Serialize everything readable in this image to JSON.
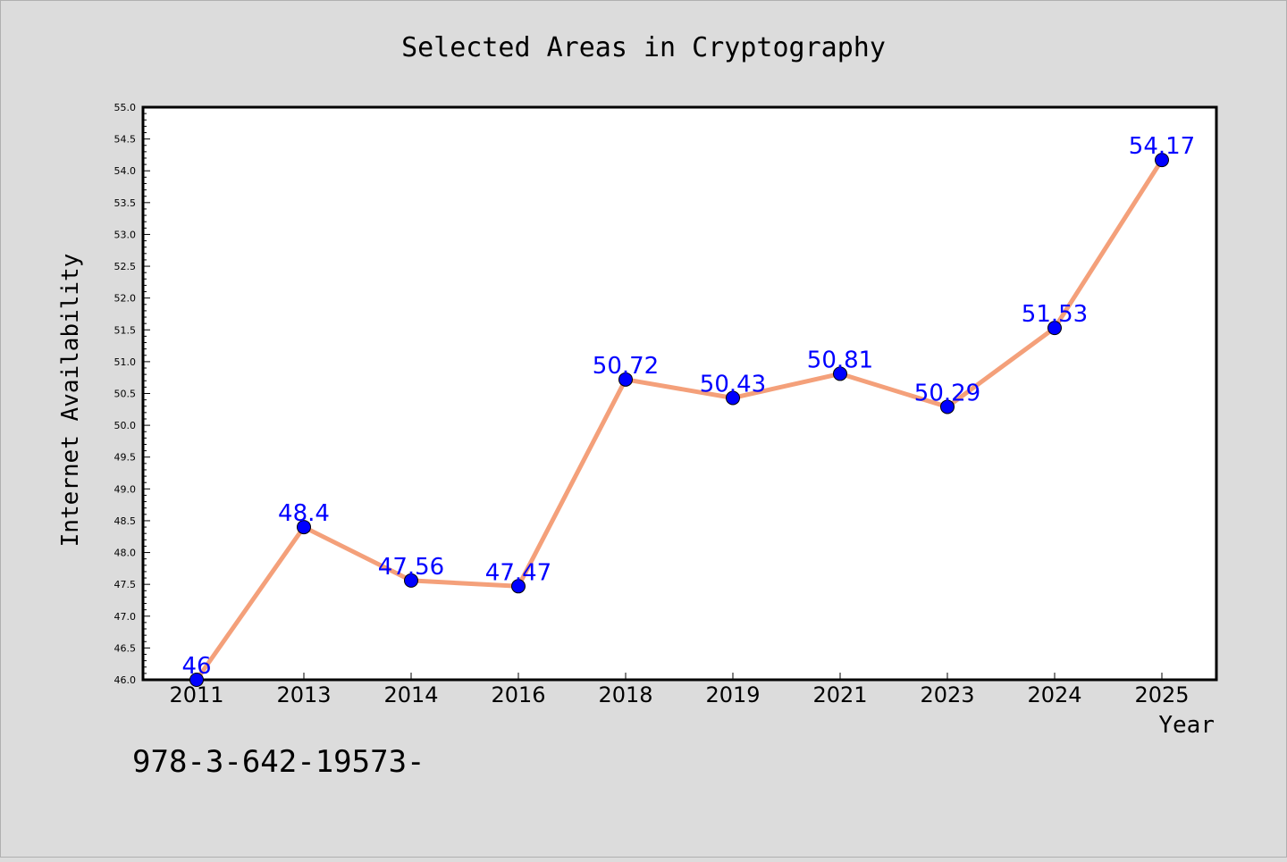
{
  "chart_data": {
    "type": "line",
    "title": "Selected Areas in Cryptography",
    "xlabel": "Year",
    "ylabel": "Internet Availability",
    "categories": [
      "2011",
      "2013",
      "2014",
      "2016",
      "2018",
      "2019",
      "2021",
      "2023",
      "2024",
      "2025"
    ],
    "series": [
      {
        "values": [
          46,
          48.4,
          47.56,
          47.47,
          50.72,
          50.43,
          50.81,
          50.29,
          51.53,
          54.17
        ],
        "labels": [
          "46",
          "48.4",
          "47.56",
          "47.47",
          "50.72",
          "50.43",
          "50.81",
          "50.29",
          "51.53",
          "54.17"
        ],
        "line_color": "#f4a07a",
        "marker_color": "#0000ff",
        "label_color": "#0000ff"
      }
    ],
    "ylim": [
      46.0,
      55.0
    ],
    "yticks": [
      "46.0",
      "46.5",
      "47.0",
      "47.5",
      "48.0",
      "48.5",
      "49.0",
      "49.5",
      "50.0",
      "50.5",
      "51.0",
      "51.5",
      "52.0",
      "52.5",
      "53.0",
      "53.5",
      "54.0",
      "54.5",
      "55.0"
    ],
    "grid": false,
    "background_color": "#dcdcdc",
    "plot_background_color": "#ffffff"
  },
  "footer": {
    "isbn_text": "978-3-642-19573-"
  }
}
